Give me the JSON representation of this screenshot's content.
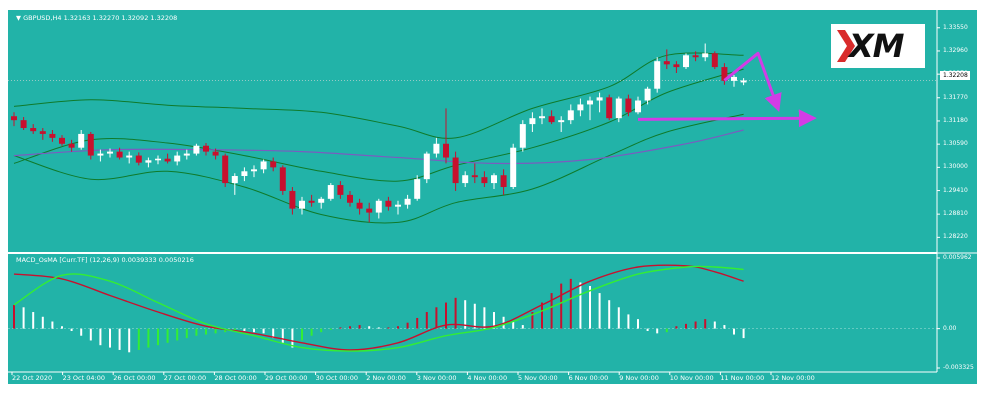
{
  "header": {
    "title": "GBPUSD,H4",
    "ohlc": "1.32163 1.32270 1.32092 1.32208"
  },
  "logo": {
    "text": "XM",
    "accent_color": "#d92b2b"
  },
  "macd_header": "MACD_OsMA [Curr.TF] (12,26,9) 0.0039333 0.0050216",
  "current_price": "1.32208",
  "colors": {
    "background": "#22b3a8",
    "bull_candle": "#ffffff",
    "bear_candle": "#c8102e",
    "bollinger": "#0f7a2a",
    "slow_ma": "#7a5cc0",
    "macd_signal": "#c8102e",
    "macd_line": "#33ee33",
    "arrow": "#d23ce6"
  },
  "chart_data": [
    {
      "type": "candlestick",
      "title": "GBPUSD,H4",
      "y_ticks": [
        "1.33550",
        "1.32960",
        "1.32370",
        "1.31770",
        "1.31180",
        "1.30590",
        "1.30000",
        "1.29410",
        "1.28810",
        "1.28220"
      ],
      "ylim": [
        1.28,
        1.339
      ],
      "x_labels": [
        "22 Oct 2020",
        "23 Oct 04:00",
        "26 Oct 00:00",
        "27 Oct 00:00",
        "28 Oct 00:00",
        "29 Oct 00:00",
        "30 Oct 00:00",
        "2 Nov 00:00",
        "3 Nov 00:00",
        "4 Nov 00:00",
        "5 Nov 00:00",
        "6 Nov 00:00",
        "9 Nov 00:00",
        "10 Nov 00:00",
        "11 Nov 00:00",
        "12 Nov 00:00"
      ],
      "candles": [
        [
          1.313,
          1.314,
          1.3105,
          1.312
        ],
        [
          1.312,
          1.3128,
          1.3095,
          1.31
        ],
        [
          1.31,
          1.311,
          1.3085,
          1.3092
        ],
        [
          1.3092,
          1.31,
          1.307,
          1.3085
        ],
        [
          1.3085,
          1.3095,
          1.3065,
          1.3075
        ],
        [
          1.3075,
          1.3082,
          1.3055,
          1.306
        ],
        [
          1.306,
          1.307,
          1.304,
          1.305
        ],
        [
          1.305,
          1.3095,
          1.3045,
          1.3085
        ],
        [
          1.3085,
          1.309,
          1.302,
          1.303
        ],
        [
          1.303,
          1.3045,
          1.3015,
          1.3035
        ],
        [
          1.3035,
          1.3048,
          1.3025,
          1.304
        ],
        [
          1.304,
          1.305,
          1.302,
          1.3025
        ],
        [
          1.3025,
          1.304,
          1.301,
          1.303
        ],
        [
          1.303,
          1.3038,
          1.3005,
          1.3012
        ],
        [
          1.3012,
          1.3025,
          1.3,
          1.3018
        ],
        [
          1.3018,
          1.303,
          1.3008,
          1.3022
        ],
        [
          1.3022,
          1.3035,
          1.301,
          1.3015
        ],
        [
          1.3015,
          1.304,
          1.3005,
          1.303
        ],
        [
          1.303,
          1.3045,
          1.302,
          1.3035
        ],
        [
          1.3035,
          1.306,
          1.303,
          1.3055
        ],
        [
          1.3055,
          1.3062,
          1.303,
          1.304
        ],
        [
          1.304,
          1.3048,
          1.302,
          1.303
        ],
        [
          1.303,
          1.3035,
          1.295,
          1.296
        ],
        [
          1.296,
          1.2985,
          1.293,
          1.2978
        ],
        [
          1.2978,
          1.3,
          1.2965,
          1.299
        ],
        [
          1.299,
          1.3005,
          1.2975,
          1.2995
        ],
        [
          1.2995,
          1.302,
          1.2985,
          1.3015
        ],
        [
          1.3015,
          1.3025,
          1.299,
          1.3
        ],
        [
          1.3,
          1.3005,
          1.293,
          1.294
        ],
        [
          1.294,
          1.295,
          1.288,
          1.2895
        ],
        [
          1.2895,
          1.2925,
          1.288,
          1.2915
        ],
        [
          1.2915,
          1.293,
          1.29,
          1.291
        ],
        [
          1.291,
          1.2925,
          1.2895,
          1.292
        ],
        [
          1.292,
          1.296,
          1.2915,
          1.2955
        ],
        [
          1.2955,
          1.2965,
          1.292,
          1.293
        ],
        [
          1.293,
          1.294,
          1.29,
          1.291
        ],
        [
          1.291,
          1.292,
          1.288,
          1.2895
        ],
        [
          1.2895,
          1.291,
          1.286,
          1.2885
        ],
        [
          1.2885,
          1.292,
          1.287,
          1.2915
        ],
        [
          1.2915,
          1.2925,
          1.289,
          1.29
        ],
        [
          1.29,
          1.2915,
          1.288,
          1.2905
        ],
        [
          1.2905,
          1.293,
          1.2895,
          1.292
        ],
        [
          1.292,
          1.298,
          1.2915,
          1.297
        ],
        [
          1.297,
          1.304,
          1.296,
          1.3035
        ],
        [
          1.3035,
          1.3075,
          1.3025,
          1.306
        ],
        [
          1.306,
          1.315,
          1.301,
          1.3025
        ],
        [
          1.3025,
          1.304,
          1.294,
          1.296
        ],
        [
          1.296,
          1.299,
          1.295,
          1.298
        ],
        [
          1.298,
          1.301,
          1.296,
          1.2975
        ],
        [
          1.2975,
          1.299,
          1.295,
          1.296
        ],
        [
          1.296,
          1.2985,
          1.2945,
          1.298
        ],
        [
          1.298,
          1.2995,
          1.293,
          1.295
        ],
        [
          1.295,
          1.306,
          1.2945,
          1.305
        ],
        [
          1.305,
          1.312,
          1.304,
          1.311
        ],
        [
          1.311,
          1.314,
          1.309,
          1.3125
        ],
        [
          1.3125,
          1.315,
          1.311,
          1.313
        ],
        [
          1.313,
          1.3145,
          1.311,
          1.3115
        ],
        [
          1.3115,
          1.313,
          1.309,
          1.312
        ],
        [
          1.312,
          1.316,
          1.311,
          1.3145
        ],
        [
          1.3145,
          1.3175,
          1.313,
          1.316
        ],
        [
          1.316,
          1.318,
          1.312,
          1.317
        ],
        [
          1.317,
          1.319,
          1.314,
          1.3178
        ],
        [
          1.3178,
          1.3185,
          1.312,
          1.3125
        ],
        [
          1.3125,
          1.318,
          1.3115,
          1.3175
        ],
        [
          1.3175,
          1.3185,
          1.313,
          1.314
        ],
        [
          1.314,
          1.318,
          1.3135,
          1.317
        ],
        [
          1.317,
          1.3205,
          1.316,
          1.32
        ],
        [
          1.32,
          1.328,
          1.319,
          1.327
        ],
        [
          1.327,
          1.33,
          1.325,
          1.3262
        ],
        [
          1.3262,
          1.327,
          1.324,
          1.3255
        ],
        [
          1.3255,
          1.329,
          1.325,
          1.3285
        ],
        [
          1.3285,
          1.3295,
          1.327,
          1.328
        ],
        [
          1.328,
          1.3315,
          1.327,
          1.329
        ],
        [
          1.329,
          1.3295,
          1.325,
          1.3255
        ],
        [
          1.3255,
          1.3265,
          1.321,
          1.322
        ],
        [
          1.322,
          1.3235,
          1.3205,
          1.323
        ],
        [
          1.3216,
          1.3227,
          1.3209,
          1.3221
        ]
      ],
      "series": [
        {
          "name": "",
          "style": "bollinger",
          "anchors": [
            [
              0,
              1.3155
            ],
            [
              8,
              1.3172
            ],
            [
              16,
              1.3158
            ],
            [
              24,
              1.315
            ],
            [
              32,
              1.314
            ],
            [
              40,
              1.3105
            ],
            [
              46,
              1.3075
            ],
            [
              54,
              1.315
            ],
            [
              62,
              1.3205
            ],
            [
              68,
              1.3285
            ],
            [
              76,
              1.3285
            ]
          ]
        },
        {
          "name": "",
          "style": "bollinger",
          "anchors": [
            [
              0,
              1.301
            ],
            [
              8,
              1.307
            ],
            [
              16,
              1.3062
            ],
            [
              24,
              1.303
            ],
            [
              32,
              1.299
            ],
            [
              40,
              1.2965
            ],
            [
              46,
              1.3005
            ],
            [
              54,
              1.305
            ],
            [
              62,
              1.3115
            ],
            [
              68,
              1.319
            ],
            [
              76,
              1.325
            ]
          ]
        },
        {
          "name": "",
          "style": "bollinger",
          "anchors": [
            [
              0,
              1.303
            ],
            [
              8,
              1.297
            ],
            [
              16,
              1.299
            ],
            [
              24,
              1.295
            ],
            [
              32,
              1.288
            ],
            [
              40,
              1.286
            ],
            [
              46,
              1.291
            ],
            [
              54,
              1.2945
            ],
            [
              62,
              1.303
            ],
            [
              68,
              1.309
            ],
            [
              76,
              1.3135
            ]
          ]
        },
        {
          "name": "",
          "style": "slow_ma",
          "anchors": [
            [
              0,
              1.303
            ],
            [
              10,
              1.3045
            ],
            [
              20,
              1.3045
            ],
            [
              30,
              1.304
            ],
            [
              40,
              1.3025
            ],
            [
              50,
              1.301
            ],
            [
              60,
              1.302
            ],
            [
              70,
              1.306
            ],
            [
              76,
              1.3095
            ]
          ]
        }
      ],
      "annotations": [
        {
          "type": "arrow",
          "from": [
            74,
            1.3221
          ],
          "via": [
            77.5,
            1.329
          ],
          "to": [
            79.5,
            1.3155
          ]
        },
        {
          "type": "arrow",
          "from": [
            65,
            1.3122
          ],
          "to": [
            83,
            1.3125
          ]
        }
      ]
    },
    {
      "type": "bar",
      "title": "MACD_OsMA [Curr.TF] (12,26,9) 0.0039333 0.0050216",
      "y_ticks": [
        "0.005962",
        "0.00",
        "-0.003325"
      ],
      "ylim": [
        -0.003325,
        0.005962
      ],
      "histogram": [
        0.002,
        0.0018,
        0.0014,
        0.001,
        0.0006,
        0.0002,
        -0.0002,
        -0.0006,
        -0.001,
        -0.0014,
        -0.0016,
        -0.0018,
        -0.002,
        -0.0018,
        -0.0016,
        -0.0014,
        -0.0012,
        -0.001,
        -0.0008,
        -0.0006,
        -0.0005,
        -0.0004,
        -0.0003,
        -0.0002,
        -0.0002,
        -0.0003,
        -0.0004,
        -0.0008,
        -0.0012,
        -0.0016,
        -0.001,
        -0.0006,
        -0.0003,
        -0.0001,
        0.0001,
        0.0002,
        0.0003,
        0.0002,
        0.0001,
        0.0001,
        0.0002,
        0.0005,
        0.0009,
        0.0014,
        0.0018,
        0.0022,
        0.0026,
        0.0024,
        0.0021,
        0.0018,
        0.0014,
        0.001,
        0.0006,
        0.0003,
        0.0014,
        0.0022,
        0.003,
        0.0038,
        0.0042,
        0.0039,
        0.0036,
        0.003,
        0.0024,
        0.0018,
        0.0012,
        0.0008,
        -0.0002,
        -0.0004,
        -0.0003,
        0.0002,
        0.0004,
        0.0006,
        0.0008,
        0.0006,
        0.0003,
        -0.0005,
        -0.0008
      ],
      "series": [
        {
          "name": "",
          "style": "macd_signal",
          "anchors": [
            [
              0,
              0.0046
            ],
            [
              5,
              0.0042
            ],
            [
              10,
              0.0028
            ],
            [
              15,
              0.0014
            ],
            [
              20,
              0.0002
            ],
            [
              25,
              -0.0004
            ],
            [
              30,
              -0.0012
            ],
            [
              35,
              -0.0018
            ],
            [
              40,
              -0.0012
            ],
            [
              45,
              0.0003
            ],
            [
              50,
              0.0002
            ],
            [
              55,
              0.002
            ],
            [
              60,
              0.004
            ],
            [
              65,
              0.0052
            ],
            [
              70,
              0.0053
            ],
            [
              73,
              0.0048
            ],
            [
              76,
              0.004
            ]
          ]
        },
        {
          "name": "",
          "style": "macd_line",
          "anchors": [
            [
              0,
              0.002
            ],
            [
              5,
              0.0045
            ],
            [
              10,
              0.004
            ],
            [
              15,
              0.0022
            ],
            [
              20,
              0.0004
            ],
            [
              25,
              -0.0006
            ],
            [
              30,
              -0.0016
            ],
            [
              35,
              -0.0019
            ],
            [
              40,
              -0.0016
            ],
            [
              45,
              -0.0006
            ],
            [
              50,
              0.0001
            ],
            [
              55,
              0.0015
            ],
            [
              60,
              0.0032
            ],
            [
              65,
              0.0046
            ],
            [
              70,
              0.0052
            ],
            [
              73,
              0.0052
            ],
            [
              76,
              0.005
            ]
          ]
        }
      ]
    }
  ]
}
